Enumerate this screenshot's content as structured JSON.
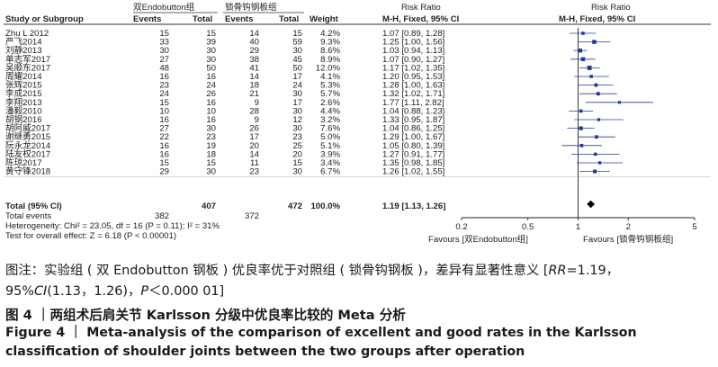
{
  "header": {
    "exp_group": "双Endobutton组",
    "ctl_group": "锁骨钩钢板组",
    "rr_header_1": "Risk Ratio",
    "rr_header_2": "Risk Ratio",
    "col_study": "Study or Subgroup",
    "col_events_exp": "Events",
    "col_total_exp": "Total",
    "col_events_ctl": "Events",
    "col_total_ctl": "Total",
    "col_weight": "Weight",
    "col_method_1": "M-H, Fixed, 95% CI",
    "col_method_2": "M-H, Fixed, 95% CI"
  },
  "chart_data": {
    "type": "forest",
    "studies": [
      {
        "name": "Zhu L 2012",
        "e1": "15",
        "t1": "15",
        "e2": "14",
        "t2": "15",
        "weight": "4.2%",
        "ci_text": "1.07 [0.89, 1.28]",
        "rr": 1.07,
        "lo": 0.89,
        "hi": 1.28
      },
      {
        "name": "严飞2014",
        "e1": "33",
        "t1": "39",
        "e2": "40",
        "t2": "59",
        "weight": "9.3%",
        "ci_text": "1.25 [1.00, 1.56]",
        "rr": 1.25,
        "lo": 1.0,
        "hi": 1.56
      },
      {
        "name": "刘静2013",
        "e1": "30",
        "t1": "30",
        "e2": "29",
        "t2": "30",
        "weight": "8.6%",
        "ci_text": "1.03 [0.94, 1.13]",
        "rr": 1.03,
        "lo": 0.94,
        "hi": 1.13
      },
      {
        "name": "单志军2017",
        "e1": "27",
        "t1": "30",
        "e2": "38",
        "t2": "45",
        "weight": "8.9%",
        "ci_text": "1.07 [0.90, 1.27]",
        "rr": 1.07,
        "lo": 0.9,
        "hi": 1.27
      },
      {
        "name": "吴顺东2017",
        "e1": "48",
        "t1": "50",
        "e2": "41",
        "t2": "50",
        "weight": "12.0%",
        "ci_text": "1.17 [1.02, 1.35]",
        "rr": 1.17,
        "lo": 1.02,
        "hi": 1.35
      },
      {
        "name": "周耀2014",
        "e1": "16",
        "t1": "16",
        "e2": "14",
        "t2": "17",
        "weight": "4.1%",
        "ci_text": "1.20 [0.95, 1.53]",
        "rr": 1.2,
        "lo": 0.95,
        "hi": 1.53
      },
      {
        "name": "张辉2015",
        "e1": "23",
        "t1": "24",
        "e2": "18",
        "t2": "24",
        "weight": "5.3%",
        "ci_text": "1.28 [1.00, 1.63]",
        "rr": 1.28,
        "lo": 1.0,
        "hi": 1.63
      },
      {
        "name": "李成2015",
        "e1": "24",
        "t1": "26",
        "e2": "21",
        "t2": "30",
        "weight": "5.7%",
        "ci_text": "1.32 [1.02, 1.71]",
        "rr": 1.32,
        "lo": 1.02,
        "hi": 1.71
      },
      {
        "name": "李翔2013",
        "e1": "15",
        "t1": "16",
        "e2": "9",
        "t2": "17",
        "weight": "2.6%",
        "ci_text": "1.77 [1.11, 2.82]",
        "rr": 1.77,
        "lo": 1.11,
        "hi": 2.82
      },
      {
        "name": "潘毅2010",
        "e1": "10",
        "t1": "10",
        "e2": "28",
        "t2": "30",
        "weight": "4.4%",
        "ci_text": "1.04 [0.88, 1.23]",
        "rr": 1.04,
        "lo": 0.88,
        "hi": 1.23
      },
      {
        "name": "胡钢2016",
        "e1": "16",
        "t1": "16",
        "e2": "9",
        "t2": "12",
        "weight": "3.2%",
        "ci_text": "1.33 [0.95, 1.87]",
        "rr": 1.33,
        "lo": 0.95,
        "hi": 1.87
      },
      {
        "name": "胡阿威2017",
        "e1": "27",
        "t1": "30",
        "e2": "26",
        "t2": "30",
        "weight": "7.6%",
        "ci_text": "1.04 [0.86, 1.25]",
        "rr": 1.04,
        "lo": 0.86,
        "hi": 1.25
      },
      {
        "name": "谢继勇2015",
        "e1": "22",
        "t1": "23",
        "e2": "17",
        "t2": "23",
        "weight": "5.0%",
        "ci_text": "1.29 [1.00, 1.67]",
        "rr": 1.29,
        "lo": 1.0,
        "hi": 1.67
      },
      {
        "name": "阮永龙2014",
        "e1": "16",
        "t1": "19",
        "e2": "20",
        "t2": "25",
        "weight": "5.1%",
        "ci_text": "1.05 [0.80, 1.39]",
        "rr": 1.05,
        "lo": 0.8,
        "hi": 1.39
      },
      {
        "name": "陆友权2017",
        "e1": "16",
        "t1": "18",
        "e2": "14",
        "t2": "20",
        "weight": "3.9%",
        "ci_text": "1.27 [0.91, 1.77]",
        "rr": 1.27,
        "lo": 0.91,
        "hi": 1.77
      },
      {
        "name": "陈琼2017",
        "e1": "15",
        "t1": "15",
        "e2": "11",
        "t2": "15",
        "weight": "3.4%",
        "ci_text": "1.35 [0.98, 1.85]",
        "rr": 1.35,
        "lo": 0.98,
        "hi": 1.85
      },
      {
        "name": "黄守锋2018",
        "e1": "29",
        "t1": "30",
        "e2": "23",
        "t2": "30",
        "weight": "6.7%",
        "ci_text": "1.26 [1.02, 1.55]",
        "rr": 1.26,
        "lo": 1.02,
        "hi": 1.55
      }
    ],
    "total": {
      "label": "Total (95% CI)",
      "t1": "407",
      "t2": "472",
      "weight": "100.0%",
      "ci_text": "1.19 [1.13, 1.26]",
      "rr": 1.19,
      "lo": 1.13,
      "hi": 1.26
    },
    "total_events": {
      "label": "Total events",
      "e1": "382",
      "e2": "372"
    },
    "heterogeneity": "Heterogeneity: Chi² = 23.05, df = 16 (P = 0.11); I² = 31%",
    "overall_effect": "Test for overall effect: Z = 6.18 (P < 0.00001)",
    "axis": {
      "scale": "log",
      "ticks": [
        0.2,
        0.5,
        1,
        2,
        5
      ],
      "tick_labels": [
        "0.2",
        "0.5",
        "1",
        "2",
        "5"
      ],
      "favours_left": "Favours [双Endobutton组]",
      "favours_right": "Favours [锁骨钩钢板组]"
    }
  },
  "caption": {
    "note_line1": "图注：实验组 ( 双 Endobutton 钢板 ) 优良率优于对照组 ( 锁骨钩钢板 )，差异有显著性意义 [",
    "note_rr_symbol": "RR",
    "note_rr_value": "=1.19，",
    "note_line2_a": "95%",
    "note_ci_symbol": "CI",
    "note_ci_value": "(1.13，1.26)，",
    "note_p_symbol": "P",
    "note_p_value": "＜0.000 01]",
    "title_zh": "图 4 ｜两组术后肩关节 Karlsson 分级中优良率比较的 Meta 分析",
    "title_en": "Figure 4  ｜  Meta-analysis of the comparison of excellent and good rates in the Karlsson classification of shoulder joints between the two groups after operation"
  }
}
